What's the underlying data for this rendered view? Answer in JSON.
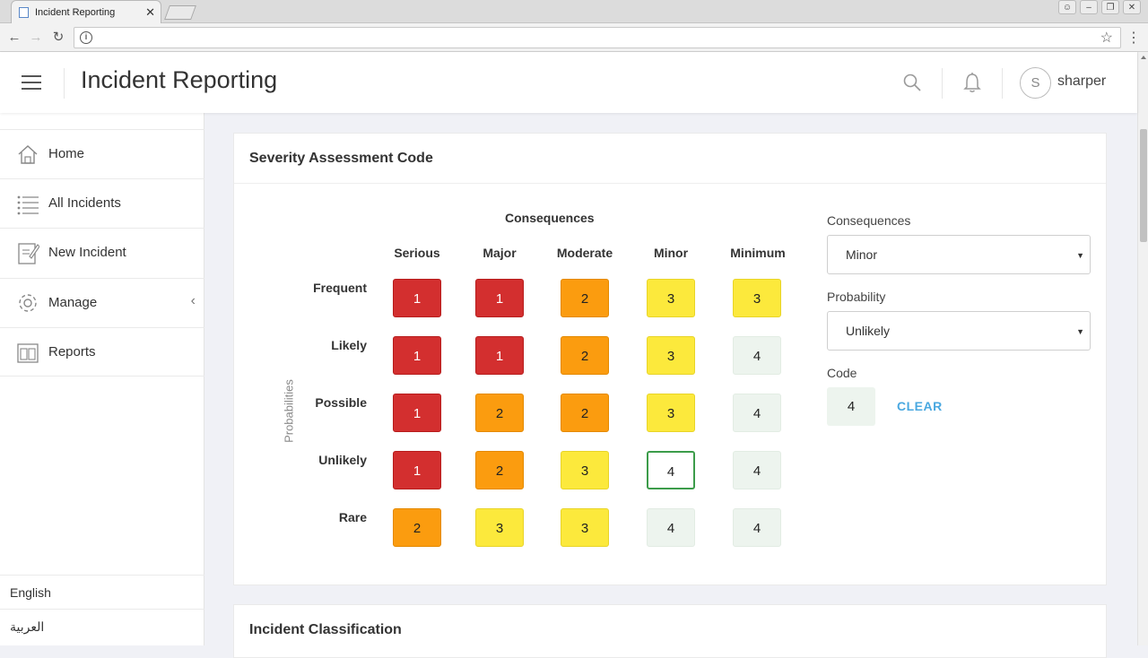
{
  "browser": {
    "tab_title": "Incident Reporting",
    "tab_close": "✕"
  },
  "header": {
    "title": "Incident Reporting",
    "user_initial": "S",
    "username": "sharper"
  },
  "sidebar": {
    "items": [
      {
        "label": "Home",
        "icon": "home-icon"
      },
      {
        "label": "All Incidents",
        "icon": "list-icon"
      },
      {
        "label": "New Incident",
        "icon": "edit-document-icon"
      },
      {
        "label": "Manage",
        "icon": "gear-icon"
      },
      {
        "label": "Reports",
        "icon": "reports-icon"
      }
    ],
    "manage_chevron": "‹",
    "languages": [
      "English",
      "العربية"
    ]
  },
  "severity": {
    "title": "Severity Assessment Code",
    "consequences_heading": "Consequences",
    "probabilities_axis": "Probabilities",
    "columns": [
      "Serious",
      "Major",
      "Moderate",
      "Minor",
      "Minimum"
    ],
    "rows": [
      "Frequent",
      "Likely",
      "Possible",
      "Unlikely",
      "Rare"
    ],
    "matrix": [
      [
        "1",
        "1",
        "2",
        "3",
        "3"
      ],
      [
        "1",
        "1",
        "2",
        "3",
        "4"
      ],
      [
        "1",
        "2",
        "2",
        "3",
        "4"
      ],
      [
        "1",
        "2",
        "3",
        "4",
        "4"
      ],
      [
        "2",
        "3",
        "3",
        "4",
        "4"
      ]
    ],
    "selected_cell": {
      "row": "Unlikely",
      "column": "Minor"
    },
    "level_colors": {
      "1": "#d32f2f",
      "2": "#fb9c0f",
      "3": "#fce93c",
      "4": "#edf4ee"
    },
    "form": {
      "consequences_label": "Consequences",
      "consequences_value": "Minor",
      "probability_label": "Probability",
      "probability_value": "Unlikely",
      "code_label": "Code",
      "code_value": "4",
      "clear_label": "CLEAR"
    }
  },
  "classification": {
    "title": "Incident Classification"
  }
}
